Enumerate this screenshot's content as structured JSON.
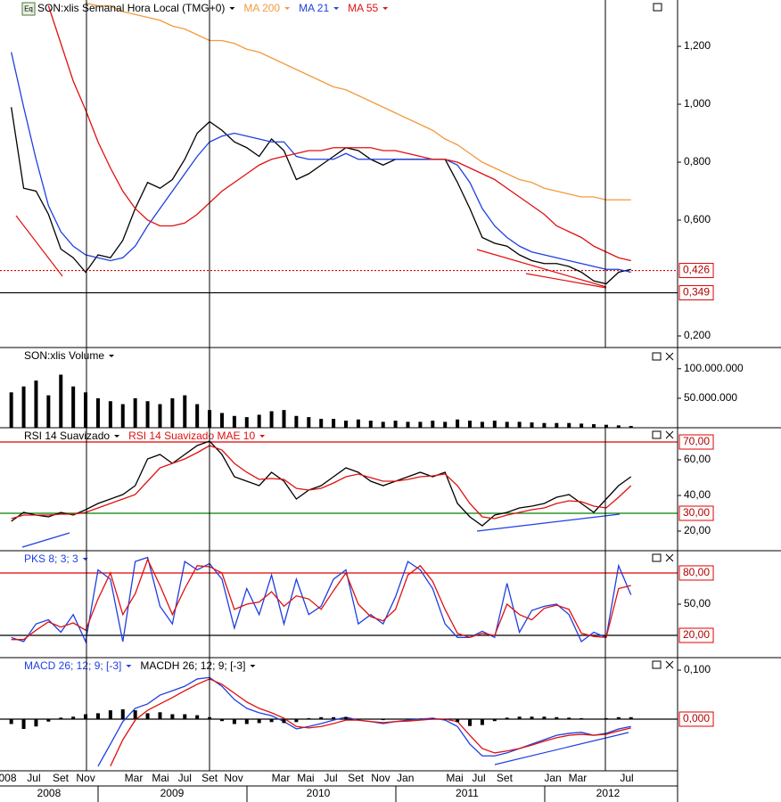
{
  "toolbar_icon": "Eq",
  "time_axis": {
    "xlim": [
      4.09,
      58.76
    ],
    "months": [
      {
        "value": 4.7,
        "label": "008"
      },
      {
        "value": 6.82,
        "label": "Jul"
      },
      {
        "value": 8.98,
        "label": "Set"
      },
      {
        "value": 11.0,
        "label": "Nov"
      },
      {
        "value": 14.88,
        "label": "Mar"
      },
      {
        "value": 17.04,
        "label": "Mai"
      },
      {
        "value": 19.0,
        "label": "Jul"
      },
      {
        "value": 21.0,
        "label": "Set"
      },
      {
        "value": 22.94,
        "label": "Nov"
      },
      {
        "value": 26.75,
        "label": "Mar"
      },
      {
        "value": 28.76,
        "label": "Mai"
      },
      {
        "value": 30.78,
        "label": "Jul"
      },
      {
        "value": 32.8,
        "label": "Set"
      },
      {
        "value": 34.8,
        "label": "Nov"
      },
      {
        "value": 36.8,
        "label": "Jan"
      },
      {
        "value": 40.78,
        "label": "Mai"
      },
      {
        "value": 42.72,
        "label": "Jul"
      },
      {
        "value": 44.8,
        "label": "Set"
      },
      {
        "value": 48.69,
        "label": "Jan"
      },
      {
        "value": 50.7,
        "label": "Mar"
      },
      {
        "value": 54.66,
        "label": "Jul"
      }
    ],
    "years": [
      {
        "value": 8.04,
        "label": "2008"
      },
      {
        "value": 17.97,
        "label": "2009"
      },
      {
        "value": 29.77,
        "label": "2010"
      },
      {
        "value": 41.78,
        "label": "2011"
      },
      {
        "value": 53.15,
        "label": "2012"
      }
    ]
  },
  "chart_data": [
    {
      "type": "line",
      "x": [
        5,
        6,
        7,
        8,
        9,
        10,
        11,
        12,
        13,
        14,
        15,
        16,
        17,
        18,
        19,
        20,
        21,
        22,
        23,
        24,
        25,
        26,
        27,
        28,
        29,
        30,
        31,
        32,
        33,
        34,
        35,
        36,
        37,
        38,
        39,
        40,
        41,
        42,
        43,
        44,
        45,
        46,
        47,
        48,
        49,
        50,
        51,
        52,
        53,
        54,
        55
      ],
      "ylim": [
        0.16,
        1.36
      ],
      "yticks": [
        {
          "value": 1.2,
          "label": "1,200"
        },
        {
          "value": 1.0,
          "label": "1,000"
        },
        {
          "value": 0.8,
          "label": "0,800"
        },
        {
          "value": 0.6,
          "label": "0,600"
        },
        {
          "value": 0.2,
          "label": "0,200"
        }
      ],
      "levels": [
        {
          "value": 0.426,
          "label": "0,426",
          "color": "#e00000",
          "dash": true
        },
        {
          "value": 0.349,
          "label": "0,349",
          "color": "#000000",
          "dash": false
        }
      ],
      "series": [
        {
          "name": "SON:xlis Semanal Hora Local (TMG+0)",
          "color": "#000000",
          "values": [
            0.99,
            0.71,
            0.7,
            0.62,
            0.5,
            0.47,
            0.42,
            0.48,
            0.47,
            0.53,
            0.64,
            0.73,
            0.71,
            0.74,
            0.81,
            0.9,
            0.94,
            0.91,
            0.87,
            0.85,
            0.82,
            0.88,
            0.84,
            0.74,
            0.76,
            0.79,
            0.82,
            0.85,
            0.84,
            0.81,
            0.79,
            0.81,
            0.81,
            0.81,
            0.81,
            0.81,
            0.73,
            0.64,
            0.54,
            0.52,
            0.51,
            0.48,
            0.46,
            0.45,
            0.45,
            0.44,
            0.42,
            0.39,
            0.38,
            0.42,
            0.43
          ]
        },
        {
          "name": "MA 200",
          "color": "#f39a3c",
          "values": [
            null,
            null,
            null,
            null,
            null,
            null,
            1.35,
            1.34,
            1.34,
            1.32,
            1.31,
            1.3,
            1.29,
            1.27,
            1.26,
            1.24,
            1.22,
            1.22,
            1.21,
            1.19,
            1.18,
            1.16,
            1.14,
            1.12,
            1.1,
            1.08,
            1.06,
            1.05,
            1.03,
            1.01,
            0.99,
            0.97,
            0.95,
            0.93,
            0.91,
            0.88,
            0.86,
            0.83,
            0.8,
            0.78,
            0.76,
            0.74,
            0.73,
            0.71,
            0.7,
            0.69,
            0.68,
            0.68,
            0.67,
            0.67,
            0.67
          ]
        },
        {
          "name": "MA 21",
          "color": "#1f3fe0",
          "values": [
            1.18,
            0.99,
            0.81,
            0.65,
            0.56,
            0.51,
            0.48,
            0.47,
            0.46,
            0.47,
            0.51,
            0.58,
            0.64,
            0.7,
            0.76,
            0.82,
            0.87,
            0.89,
            0.9,
            0.89,
            0.88,
            0.87,
            0.87,
            0.82,
            0.81,
            0.81,
            0.81,
            0.83,
            0.81,
            0.81,
            0.81,
            0.81,
            0.81,
            0.81,
            0.81,
            0.81,
            0.79,
            0.73,
            0.64,
            0.58,
            0.54,
            0.51,
            0.49,
            0.48,
            0.47,
            0.46,
            0.45,
            0.44,
            0.43,
            0.43,
            0.42
          ]
        },
        {
          "name": "MA 55",
          "color": "#e01010",
          "values": [
            null,
            null,
            null,
            1.34,
            1.21,
            1.08,
            0.98,
            0.87,
            0.78,
            0.7,
            0.64,
            0.6,
            0.58,
            0.58,
            0.59,
            0.62,
            0.66,
            0.7,
            0.73,
            0.76,
            0.79,
            0.81,
            0.82,
            0.83,
            0.84,
            0.84,
            0.85,
            0.85,
            0.85,
            0.85,
            0.84,
            0.84,
            0.83,
            0.82,
            0.81,
            0.81,
            0.8,
            0.78,
            0.76,
            0.74,
            0.71,
            0.68,
            0.65,
            0.62,
            0.58,
            0.56,
            0.54,
            0.51,
            0.49,
            0.47,
            0.46
          ]
        }
      ]
    },
    {
      "type": "bar",
      "x": [
        5,
        6,
        7,
        8,
        9,
        10,
        11,
        12,
        13,
        14,
        15,
        16,
        17,
        18,
        19,
        20,
        21,
        22,
        23,
        24,
        25,
        26,
        27,
        28,
        29,
        30,
        31,
        32,
        33,
        34,
        35,
        36,
        37,
        38,
        39,
        40,
        41,
        42,
        43,
        44,
        45,
        46,
        47,
        48,
        49,
        50,
        51,
        52,
        53,
        54,
        55
      ],
      "ylim": [
        0,
        136000000
      ],
      "yticks": [
        {
          "value": 100000000,
          "label": "100.000.000"
        },
        {
          "value": 50000000,
          "label": "50.000.000"
        }
      ],
      "series": [
        {
          "name": "SON:xlis Volume",
          "color": "#000000",
          "values": [
            60000000,
            70000000,
            80000000,
            55000000,
            90000000,
            70000000,
            60000000,
            50000000,
            45000000,
            40000000,
            50000000,
            45000000,
            40000000,
            50000000,
            55000000,
            40000000,
            30000000,
            25000000,
            20000000,
            18000000,
            22000000,
            28000000,
            30000000,
            20000000,
            18000000,
            15000000,
            15000000,
            12000000,
            14000000,
            12000000,
            10000000,
            12000000,
            10000000,
            10000000,
            12000000,
            10000000,
            14000000,
            12000000,
            10000000,
            12000000,
            10000000,
            10000000,
            9000000,
            8000000,
            8000000,
            8000000,
            7000000,
            6000000,
            5000000,
            4000000,
            3000000
          ]
        }
      ]
    },
    {
      "type": "line",
      "x": [
        5,
        6,
        7,
        8,
        9,
        10,
        11,
        12,
        13,
        14,
        15,
        16,
        17,
        18,
        19,
        20,
        21,
        22,
        23,
        24,
        25,
        26,
        27,
        28,
        29,
        30,
        31,
        32,
        33,
        34,
        35,
        36,
        37,
        38,
        39,
        40,
        41,
        42,
        43,
        44,
        45,
        46,
        47,
        48,
        49,
        50,
        51,
        52,
        53,
        54,
        55
      ],
      "ylim": [
        9,
        78
      ],
      "yticks": [
        {
          "value": 60,
          "label": "60,00"
        },
        {
          "value": 40,
          "label": "40,00"
        },
        {
          "value": 20,
          "label": "20,00"
        }
      ],
      "levels": [
        {
          "value": 70,
          "label": "70,00",
          "color": "#e00000",
          "dash": false
        },
        {
          "value": 30,
          "label": "30,00",
          "color": "#008000",
          "dash": false
        }
      ],
      "series": [
        {
          "name": "RSI 14 Suavizado",
          "color": "#000000",
          "values": [
            25.5,
            30.5,
            29,
            28,
            30.5,
            29,
            32,
            35.5,
            38,
            40.5,
            45.5,
            60.5,
            63,
            58,
            63,
            68,
            70.5,
            63,
            50.5,
            48,
            45.5,
            53,
            48,
            38,
            43,
            45.5,
            50.5,
            55.5,
            53,
            48,
            45.5,
            48,
            50.5,
            53,
            50.5,
            53,
            35.5,
            28,
            23,
            29,
            30.5,
            33,
            34,
            35.5,
            39,
            40.5,
            35.5,
            30.5,
            38,
            45.5,
            50.5
          ]
        },
        {
          "name": "RSI 14 Suavizado MAE 10",
          "color": "#e01010",
          "values": [
            27,
            29,
            29,
            29,
            29.5,
            29.5,
            30.5,
            33,
            35.5,
            38,
            40.5,
            48,
            55.5,
            58,
            60.5,
            64,
            68,
            65.5,
            58,
            53,
            49,
            49.5,
            49,
            44,
            43,
            44,
            47,
            50.5,
            52,
            50,
            48,
            48,
            49,
            50.5,
            51,
            52,
            45.5,
            35.5,
            28,
            27,
            29,
            30.5,
            32,
            33,
            35.5,
            37,
            36.5,
            34,
            33,
            39,
            45.5
          ]
        }
      ]
    },
    {
      "type": "line",
      "x": [
        5,
        6,
        7,
        8,
        9,
        10,
        11,
        12,
        13,
        14,
        15,
        16,
        17,
        18,
        19,
        20,
        21,
        22,
        23,
        24,
        25,
        26,
        27,
        28,
        29,
        30,
        31,
        32,
        33,
        34,
        35,
        36,
        37,
        38,
        39,
        40,
        41,
        42,
        43,
        44,
        45,
        46,
        47,
        48,
        49,
        50,
        51,
        52,
        53,
        54,
        55
      ],
      "ylim": [
        -1.4,
        101.4
      ],
      "yticks": [
        {
          "value": 50,
          "label": "50,00"
        }
      ],
      "levels": [
        {
          "value": 80,
          "label": "80,00",
          "color": "#e00000",
          "dash": false
        },
        {
          "value": 20,
          "label": "20,00",
          "color": "#000000",
          "dash": false
        }
      ],
      "series": [
        {
          "name": "PKS 8; 3; 3",
          "color": "#1f3fe0",
          "values": [
            18,
            14,
            31,
            35,
            23,
            40,
            14,
            83,
            74,
            14,
            91,
            95,
            48,
            31,
            91,
            83,
            89,
            74,
            27,
            65,
            40,
            78,
            31,
            74,
            40,
            48,
            74,
            83,
            31,
            40,
            31,
            57,
            91,
            83,
            65,
            31,
            18,
            18,
            24,
            18,
            70,
            23,
            44,
            48,
            50,
            40,
            14,
            23,
            18,
            87,
            59
          ]
        },
        {
          "color": "#e01010",
          "values": [
            16,
            16,
            25,
            33,
            28,
            32,
            25,
            55,
            80,
            40,
            60,
            93,
            68,
            40,
            65,
            87,
            86,
            80,
            45,
            50,
            52,
            62,
            48,
            58,
            55,
            45,
            63,
            80,
            50,
            38,
            34,
            45,
            78,
            87,
            72,
            45,
            22,
            18,
            22,
            20,
            50,
            40,
            35,
            46,
            49,
            45,
            22,
            19,
            18,
            65,
            68
          ]
        }
      ]
    },
    {
      "type": "line",
      "x": [
        5,
        6,
        7,
        8,
        9,
        10,
        11,
        12,
        13,
        14,
        15,
        16,
        17,
        18,
        19,
        20,
        21,
        22,
        23,
        24,
        25,
        26,
        27,
        28,
        29,
        30,
        31,
        32,
        33,
        34,
        35,
        36,
        37,
        38,
        39,
        40,
        41,
        42,
        43,
        44,
        45,
        46,
        47,
        48,
        49,
        50,
        51,
        52,
        53,
        54,
        55
      ],
      "ylim": [
        -0.1055,
        0.1255
      ],
      "yticks": [
        {
          "value": 0.1,
          "label": "0,100"
        }
      ],
      "levels": [
        {
          "value": 0,
          "label": "0,000",
          "color": "#000000",
          "dash": false
        }
      ],
      "series": [
        {
          "name": "MACD 26; 12; 9; [-3]",
          "color": "#1f3fe0",
          "values": [
            null,
            null,
            null,
            null,
            null,
            null,
            null,
            -0.096,
            -0.051,
            -0.005,
            0.022,
            0.031,
            0.049,
            0.058,
            0.067,
            0.082,
            0.085,
            0.067,
            0.04,
            0.022,
            0.013,
            0.007,
            -0.005,
            -0.02,
            -0.015,
            -0.009,
            -0.002,
            0.004,
            -0.002,
            -0.005,
            -0.009,
            -0.005,
            -0.002,
            0,
            0.002,
            -0.002,
            -0.015,
            -0.051,
            -0.075,
            -0.075,
            -0.069,
            -0.06,
            -0.051,
            -0.042,
            -0.033,
            -0.029,
            -0.027,
            -0.033,
            -0.029,
            -0.02,
            -0.015
          ]
        },
        {
          "color": "#e01010",
          "values": [
            null,
            null,
            null,
            null,
            null,
            null,
            null,
            null,
            -0.096,
            -0.042,
            -0.002,
            0.018,
            0.031,
            0.044,
            0.058,
            0.071,
            0.082,
            0.071,
            0.053,
            0.035,
            0.022,
            0.013,
            0.002,
            -0.015,
            -0.018,
            -0.015,
            -0.009,
            -0.002,
            -0.002,
            -0.005,
            -0.007,
            -0.005,
            -0.004,
            -0.002,
            0,
            0,
            -0.005,
            -0.033,
            -0.06,
            -0.069,
            -0.065,
            -0.06,
            -0.053,
            -0.045,
            -0.038,
            -0.033,
            -0.031,
            -0.033,
            -0.031,
            -0.024,
            -0.018
          ]
        },
        {
          "name": "MACDH 26; 12; 9; [-3]",
          "color": "#000000",
          "style": "bar",
          "values": [
            -0.01,
            -0.02,
            -0.015,
            -0.005,
            0.003,
            0.005,
            0.01,
            0.012,
            0.018,
            0.02,
            0.018,
            0.012,
            0.014,
            0.01,
            0.01,
            0.008,
            0.004,
            -0.004,
            -0.01,
            -0.01,
            -0.008,
            -0.006,
            -0.008,
            -0.006,
            0.002,
            0.004,
            0.004,
            0.004,
            0,
            -0.001,
            -0.002,
            0,
            0.001,
            0.001,
            0.001,
            -0.001,
            -0.006,
            -0.014,
            -0.012,
            -0.004,
            0.003,
            0.005,
            0.005,
            0.005,
            0.004,
            0.003,
            0.002,
            0,
            0.002,
            0.004,
            0.004
          ]
        }
      ]
    }
  ]
}
